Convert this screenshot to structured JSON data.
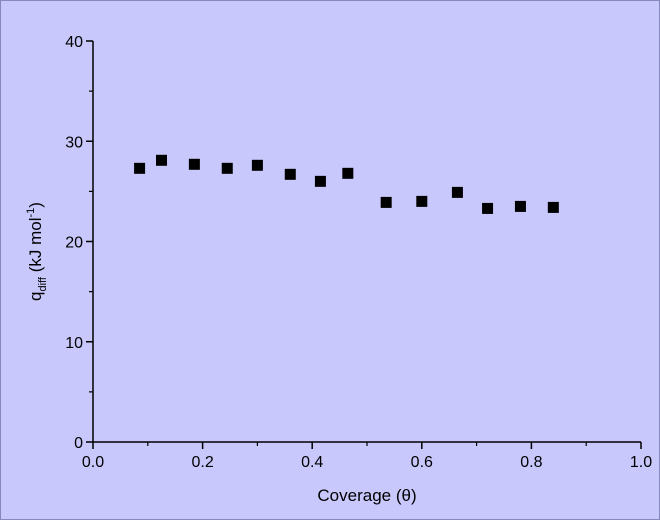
{
  "chart_data": {
    "type": "scatter",
    "xlabel": "Coverage (θ)",
    "ylabel": {
      "main": "q",
      "sub": "diff",
      "unit_open": " (kJ mol",
      "unit_sup": "-1",
      "unit_close": ")"
    },
    "xlim": [
      0.0,
      1.0
    ],
    "ylim": [
      0,
      40
    ],
    "x_ticks": [
      "0.0",
      "0.2",
      "0.4",
      "0.6",
      "0.8",
      "1.0"
    ],
    "y_ticks": [
      "0",
      "10",
      "20",
      "30",
      "40"
    ],
    "grid": false,
    "marker": "square",
    "colors": {
      "background": "#c8c8fc",
      "marker": "#000000",
      "axis": "#000000"
    },
    "series": [
      {
        "x": [
          0.085,
          0.125,
          0.185,
          0.245,
          0.3,
          0.36,
          0.415,
          0.465,
          0.535,
          0.6,
          0.665,
          0.72,
          0.78,
          0.84
        ],
        "y": [
          27.3,
          28.1,
          27.7,
          27.3,
          27.6,
          26.7,
          26.0,
          26.8,
          23.9,
          24.0,
          24.9,
          23.3,
          23.5,
          23.4
        ]
      }
    ]
  }
}
